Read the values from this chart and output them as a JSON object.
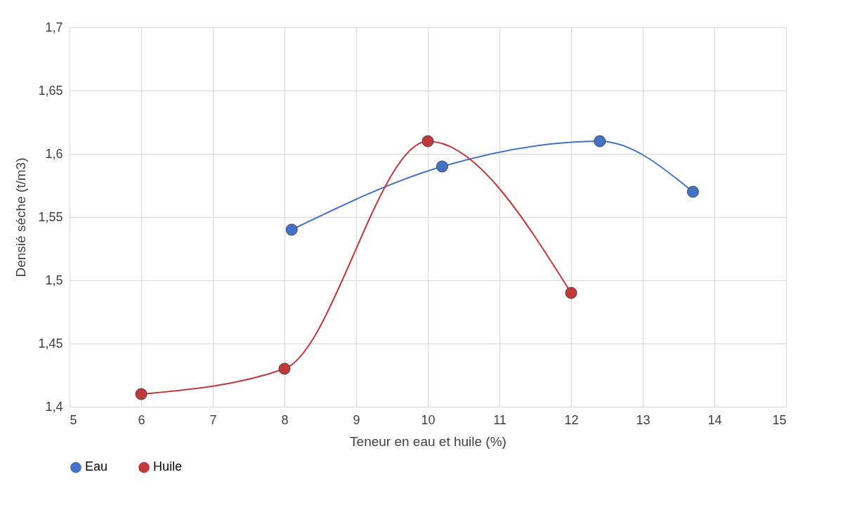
{
  "chart_data": {
    "type": "line",
    "xlabel": "Teneur en eau et huile (%)",
    "ylabel": "Densié séche (t/m3)",
    "xlim": [
      5,
      15
    ],
    "xticks": [
      5,
      6,
      7,
      8,
      9,
      10,
      11,
      12,
      13,
      14,
      15
    ],
    "ylim": [
      1.4,
      1.7
    ],
    "yticks": [
      {
        "value": 1.4,
        "label": "1,4"
      },
      {
        "value": 1.45,
        "label": "1,45"
      },
      {
        "value": 1.5,
        "label": "1,5"
      },
      {
        "value": 1.55,
        "label": "1,55"
      },
      {
        "value": 1.6,
        "label": "1,6"
      },
      {
        "value": 1.65,
        "label": "1,65"
      },
      {
        "value": 1.7,
        "label": "1,7"
      }
    ],
    "grid": true,
    "legend": "bottom",
    "marker": "circle",
    "line_style": "solid",
    "series": [
      {
        "name": "Eau",
        "color": "#4472c4",
        "x": [
          8.1,
          10.2,
          12.4,
          13.7
        ],
        "values": [
          1.54,
          1.59,
          1.61,
          1.57
        ]
      },
      {
        "name": "Huile",
        "color": "#c0393b",
        "x": [
          6,
          8,
          10,
          12
        ],
        "values": [
          1.41,
          1.43,
          1.61,
          1.49
        ]
      }
    ]
  }
}
